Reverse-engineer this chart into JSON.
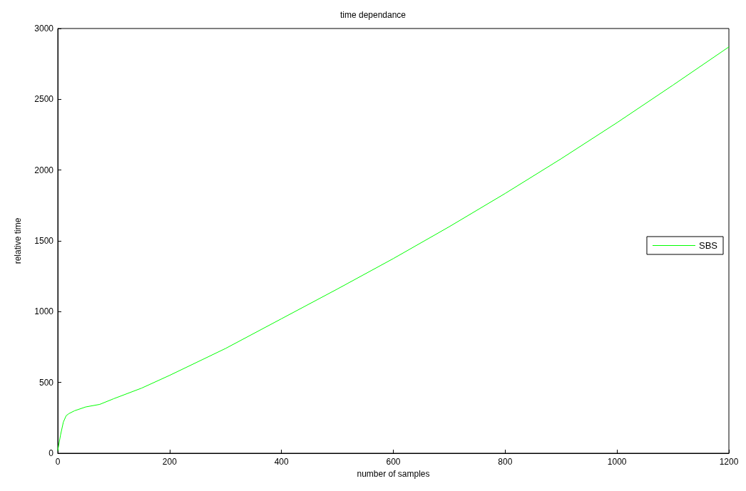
{
  "chart_data": {
    "type": "line",
    "title": "time dependance",
    "xlabel": "number of samples",
    "ylabel": "relative time",
    "x": [
      0,
      5,
      10,
      15,
      20,
      30,
      50,
      75,
      100,
      150,
      200,
      300,
      400,
      500,
      600,
      700,
      800,
      900,
      1000,
      1100,
      1200
    ],
    "series": [
      {
        "name": "SBS",
        "color": "#00ff00",
        "values": [
          20,
          130,
          220,
          265,
          280,
          300,
          327,
          345,
          385,
          460,
          550,
          740,
          950,
          1160,
          1375,
          1600,
          1835,
          2080,
          2335,
          2600,
          2870
        ]
      }
    ],
    "xlim": [
      0,
      1200
    ],
    "xticks": [
      0,
      200,
      400,
      600,
      800,
      1000,
      1200
    ],
    "ylim": [
      0,
      3000
    ],
    "yticks": [
      0,
      500,
      1000,
      1500,
      2000,
      2500,
      3000
    ],
    "grid": false,
    "legend": "right",
    "marker": "none",
    "line_style": "solid"
  }
}
